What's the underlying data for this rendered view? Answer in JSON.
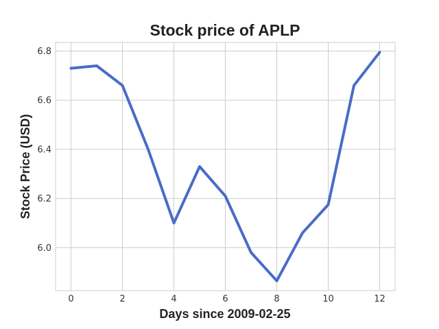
{
  "chart_data": {
    "type": "line",
    "title": "Stock price of APLP",
    "xlabel": "Days since 2009-02-25",
    "ylabel": "Stock Price (USD)",
    "xlim": [
      -0.6,
      12.6
    ],
    "ylim": [
      5.825,
      6.835
    ],
    "xticks": [
      0,
      2,
      4,
      6,
      8,
      10,
      12
    ],
    "xtick_labels": [
      "0",
      "2",
      "4",
      "6",
      "8",
      "10",
      "12"
    ],
    "yticks": [
      6.0,
      6.2,
      6.4,
      6.6,
      6.8
    ],
    "ytick_labels": [
      "6.0",
      "6.2",
      "6.4",
      "6.6",
      "6.8"
    ],
    "grid": true,
    "series": [
      {
        "color": "#4a6cc8",
        "x": [
          0,
          1,
          2,
          3,
          4,
          5,
          6,
          7,
          8,
          9,
          10,
          11,
          12
        ],
        "y": [
          6.73,
          6.74,
          6.66,
          6.4,
          6.1,
          6.33,
          6.21,
          5.98,
          5.865,
          6.06,
          6.175,
          6.66,
          6.795
        ]
      }
    ]
  }
}
